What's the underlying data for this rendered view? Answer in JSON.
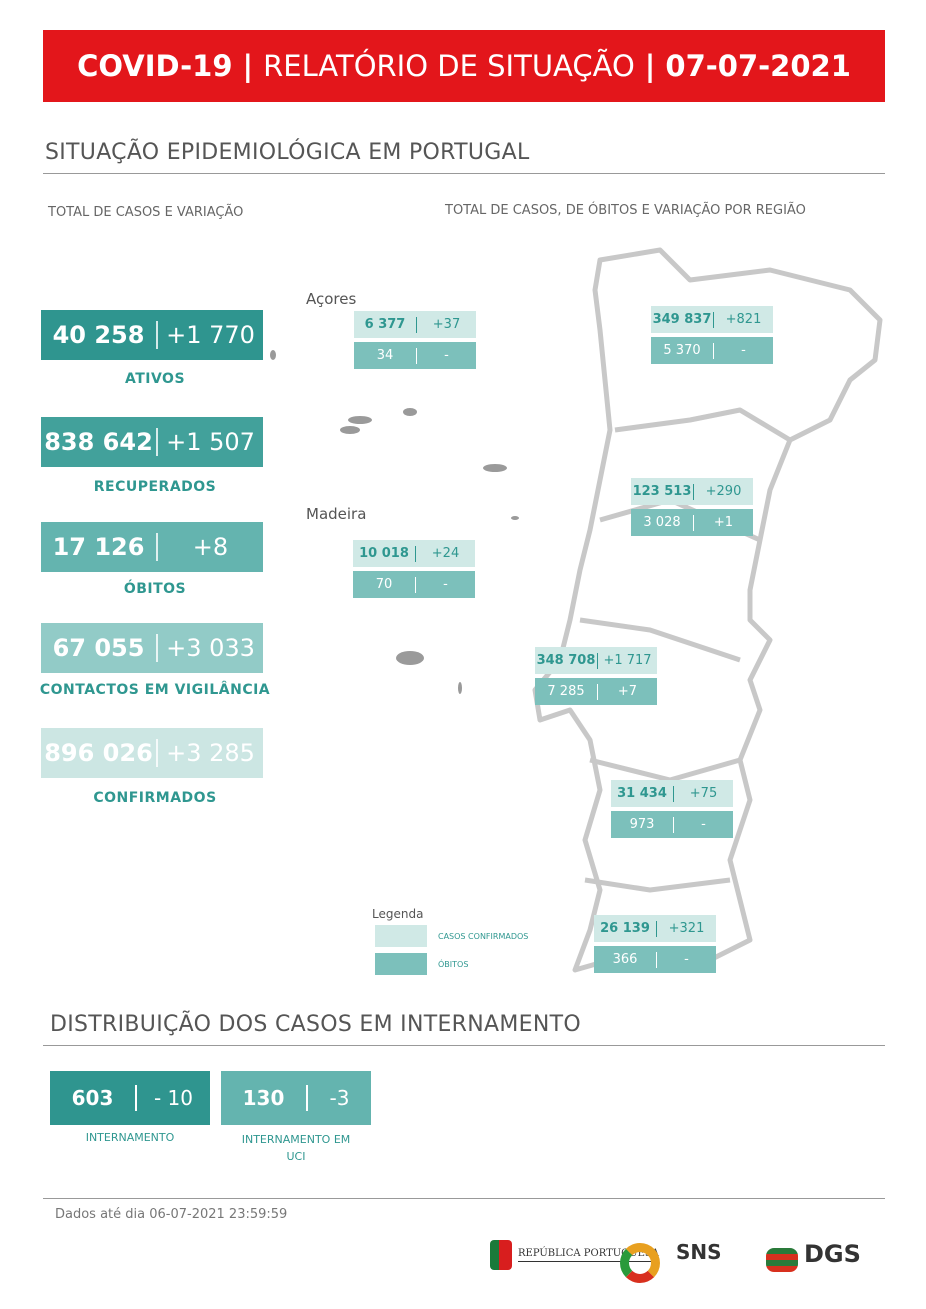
{
  "banner": {
    "part1": "COVID-19",
    "sep": "|",
    "part2": "RELATÓRIO DE SITUAÇÃO",
    "part3": "07-07-2021"
  },
  "section1": {
    "title": "SITUAÇÃO EPIDEMIOLÓGICA EM PORTUGAL",
    "left_sub": "TOTAL DE CASOS E VARIAÇÃO",
    "right_sub": "TOTAL DE CASOS, DE ÓBITOS E VARIAÇÃO POR REGIÃO"
  },
  "kpis": [
    {
      "label": "ATIVOS",
      "value": "40 258",
      "change": "+1 770",
      "color": "#2f958f"
    },
    {
      "label": "RECUPERADOS",
      "value": "838 642",
      "change": "+1 507",
      "color": "#42a19b"
    },
    {
      "label": "ÓBITOS",
      "value": "17 126",
      "change": "+8",
      "color": "#64b4af"
    },
    {
      "label": "CONTACTOS EM VIGILÂNCIA",
      "value": "67 055",
      "change": "+3 033",
      "color": "#92cbc7"
    },
    {
      "label": "CONFIRMADOS",
      "value": "896 026",
      "change": "+3 285",
      "color": "#cce6e3"
    }
  ],
  "islands": {
    "azores": "Açores",
    "madeira": "Madeira"
  },
  "regions": [
    {
      "cases": "6 377",
      "cases_change": "+37",
      "deaths": "34",
      "deaths_change": "-"
    },
    {
      "cases": "10 018",
      "cases_change": "+24",
      "deaths": "70",
      "deaths_change": "-"
    },
    {
      "cases": "349 837",
      "cases_change": "+821",
      "deaths": "5 370",
      "deaths_change": "-"
    },
    {
      "cases": "123 513",
      "cases_change": "+290",
      "deaths": "3 028",
      "deaths_change": "+1"
    },
    {
      "cases": "348 708",
      "cases_change": "+1 717",
      "deaths": "7 285",
      "deaths_change": "+7"
    },
    {
      "cases": "31 434",
      "cases_change": "+75",
      "deaths": "973",
      "deaths_change": "-"
    },
    {
      "cases": "26 139",
      "cases_change": "+321",
      "deaths": "366",
      "deaths_change": "-"
    }
  ],
  "legend": {
    "title": "Legenda",
    "confirmed": "CASOS CONFIRMADOS",
    "deaths": "ÓBITOS"
  },
  "section2": {
    "title": "DISTRIBUIÇÃO DOS CASOS EM INTERNAMENTO"
  },
  "hospital": [
    {
      "value": "603",
      "change": "- 10",
      "label": "INTERNAMENTO"
    },
    {
      "value": "130",
      "change": "-3",
      "label": "INTERNAMENTO EM UCI"
    }
  ],
  "footer": {
    "note": "Dados até dia 06-07-2021 23:59:59",
    "logos": [
      "REPÚBLICA PORTUGUESA",
      "SNS",
      "DGS"
    ]
  },
  "colors": {
    "banner": "#e3161b",
    "accent": "#2f9790",
    "map": "#c8c8c8"
  }
}
